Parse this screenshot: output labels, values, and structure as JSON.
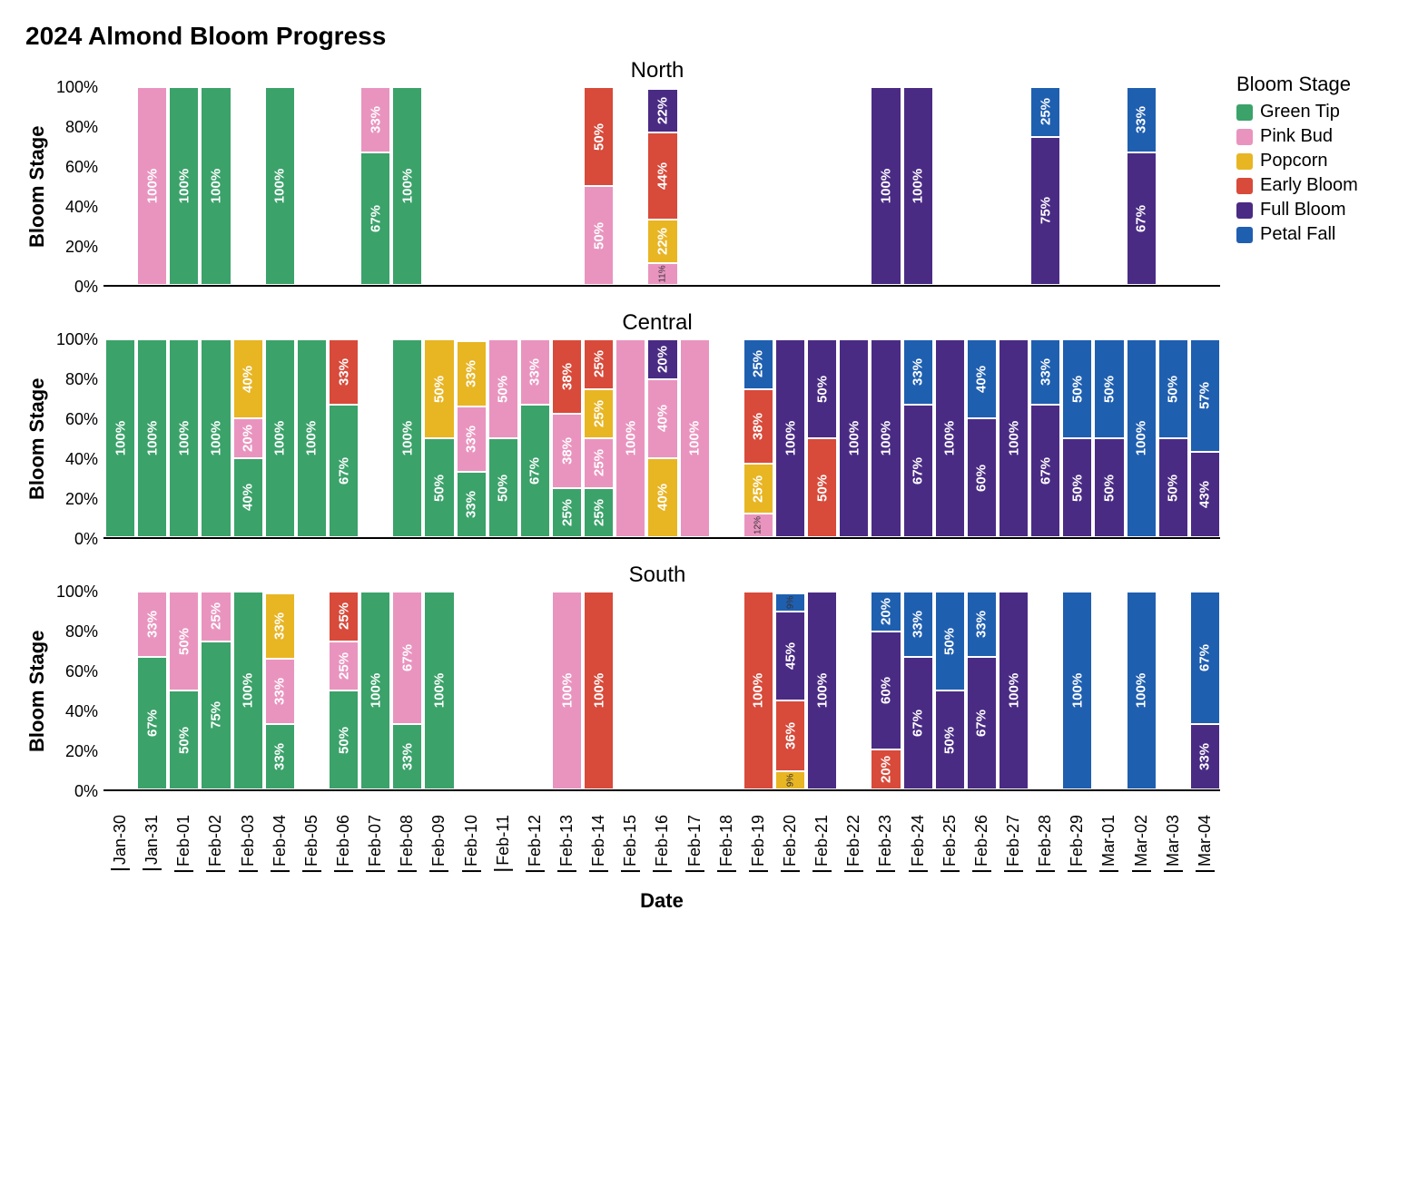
{
  "title": "2024 Almond Bloom Progress",
  "x_axis_label": "Date",
  "y_axis_label": "Bloom Stage",
  "y_ticks": [
    "0%",
    "20%",
    "40%",
    "60%",
    "80%",
    "100%"
  ],
  "dates": [
    "Jan-30",
    "Jan-31",
    "Feb-01",
    "Feb-02",
    "Feb-03",
    "Feb-04",
    "Feb-05",
    "Feb-06",
    "Feb-07",
    "Feb-08",
    "Feb-09",
    "Feb-10",
    "Feb-11",
    "Feb-12",
    "Feb-13",
    "Feb-14",
    "Feb-15",
    "Feb-16",
    "Feb-17",
    "Feb-18",
    "Feb-19",
    "Feb-20",
    "Feb-21",
    "Feb-22",
    "Feb-23",
    "Feb-24",
    "Feb-25",
    "Feb-26",
    "Feb-27",
    "Feb-28",
    "Feb-29",
    "Mar-01",
    "Mar-02",
    "Mar-03",
    "Mar-04"
  ],
  "legend_title": "Bloom Stage",
  "stages": [
    {
      "key": "green_tip",
      "label": "Green Tip",
      "color": "#3ba26a"
    },
    {
      "key": "pink_bud",
      "label": "Pink Bud",
      "color": "#e994bf"
    },
    {
      "key": "popcorn",
      "label": "Popcorn",
      "color": "#e8b523"
    },
    {
      "key": "early_bloom",
      "label": "Early Bloom",
      "color": "#d84a3a"
    },
    {
      "key": "full_bloom",
      "label": "Full Bloom",
      "color": "#4a2b84"
    },
    {
      "key": "petal_fall",
      "label": "Petal Fall",
      "color": "#1f5fb0"
    }
  ],
  "label_fontsize_pct": 15,
  "label_fontsize_small_pct": 10,
  "small_threshold": 15,
  "panels": [
    {
      "title": "North",
      "bars": {
        "Jan-31": [
          {
            "stage": "pink_bud",
            "pct": 100
          }
        ],
        "Feb-01": [
          {
            "stage": "green_tip",
            "pct": 100
          }
        ],
        "Feb-02": [
          {
            "stage": "green_tip",
            "pct": 100
          }
        ],
        "Feb-04": [
          {
            "stage": "green_tip",
            "pct": 100
          }
        ],
        "Feb-07": [
          {
            "stage": "green_tip",
            "pct": 67
          },
          {
            "stage": "pink_bud",
            "pct": 33
          }
        ],
        "Feb-08": [
          {
            "stage": "green_tip",
            "pct": 100
          }
        ],
        "Feb-14": [
          {
            "stage": "pink_bud",
            "pct": 50
          },
          {
            "stage": "early_bloom",
            "pct": 50
          }
        ],
        "Feb-16": [
          {
            "stage": "pink_bud",
            "pct": 11
          },
          {
            "stage": "popcorn",
            "pct": 22
          },
          {
            "stage": "early_bloom",
            "pct": 44
          },
          {
            "stage": "full_bloom",
            "pct": 22
          }
        ],
        "Feb-23": [
          {
            "stage": "full_bloom",
            "pct": 100
          }
        ],
        "Feb-24": [
          {
            "stage": "full_bloom",
            "pct": 100
          }
        ],
        "Feb-28": [
          {
            "stage": "full_bloom",
            "pct": 75
          },
          {
            "stage": "petal_fall",
            "pct": 25
          }
        ],
        "Mar-02": [
          {
            "stage": "full_bloom",
            "pct": 67
          },
          {
            "stage": "petal_fall",
            "pct": 33
          }
        ]
      }
    },
    {
      "title": "Central",
      "bars": {
        "Jan-30": [
          {
            "stage": "green_tip",
            "pct": 100
          }
        ],
        "Jan-31": [
          {
            "stage": "green_tip",
            "pct": 100
          }
        ],
        "Feb-01": [
          {
            "stage": "green_tip",
            "pct": 100
          }
        ],
        "Feb-02": [
          {
            "stage": "green_tip",
            "pct": 100
          }
        ],
        "Feb-03": [
          {
            "stage": "green_tip",
            "pct": 40
          },
          {
            "stage": "pink_bud",
            "pct": 20
          },
          {
            "stage": "popcorn",
            "pct": 40
          }
        ],
        "Feb-04": [
          {
            "stage": "green_tip",
            "pct": 100
          }
        ],
        "Feb-05": [
          {
            "stage": "green_tip",
            "pct": 100
          }
        ],
        "Feb-06": [
          {
            "stage": "green_tip",
            "pct": 67
          },
          {
            "stage": "early_bloom",
            "pct": 33
          }
        ],
        "Feb-08": [
          {
            "stage": "green_tip",
            "pct": 100
          }
        ],
        "Feb-09": [
          {
            "stage": "green_tip",
            "pct": 50
          },
          {
            "stage": "popcorn",
            "pct": 50
          }
        ],
        "Feb-10": [
          {
            "stage": "green_tip",
            "pct": 33
          },
          {
            "stage": "pink_bud",
            "pct": 33
          },
          {
            "stage": "popcorn",
            "pct": 33
          }
        ],
        "Feb-11": [
          {
            "stage": "green_tip",
            "pct": 50
          },
          {
            "stage": "pink_bud",
            "pct": 50
          }
        ],
        "Feb-12": [
          {
            "stage": "green_tip",
            "pct": 67
          },
          {
            "stage": "pink_bud",
            "pct": 33
          }
        ],
        "Feb-13": [
          {
            "stage": "green_tip",
            "pct": 25
          },
          {
            "stage": "pink_bud",
            "pct": 38
          },
          {
            "stage": "early_bloom",
            "pct": 38
          }
        ],
        "Feb-14": [
          {
            "stage": "green_tip",
            "pct": 25
          },
          {
            "stage": "pink_bud",
            "pct": 25
          },
          {
            "stage": "popcorn",
            "pct": 25
          },
          {
            "stage": "early_bloom",
            "pct": 25
          }
        ],
        "Feb-15": [
          {
            "stage": "pink_bud",
            "pct": 100
          }
        ],
        "Feb-16": [
          {
            "stage": "popcorn",
            "pct": 40
          },
          {
            "stage": "pink_bud",
            "pct": 40
          },
          {
            "stage": "full_bloom",
            "pct": 20
          }
        ],
        "Feb-17": [
          {
            "stage": "pink_bud",
            "pct": 100
          }
        ],
        "Feb-19": [
          {
            "stage": "pink_bud",
            "pct": 12
          },
          {
            "stage": "popcorn",
            "pct": 25
          },
          {
            "stage": "early_bloom",
            "pct": 38
          },
          {
            "stage": "petal_fall",
            "pct": 25
          }
        ],
        "Feb-20": [
          {
            "stage": "full_bloom",
            "pct": 100
          }
        ],
        "Feb-21": [
          {
            "stage": "early_bloom",
            "pct": 50
          },
          {
            "stage": "full_bloom",
            "pct": 50
          }
        ],
        "Feb-22": [
          {
            "stage": "full_bloom",
            "pct": 100
          }
        ],
        "Feb-23": [
          {
            "stage": "full_bloom",
            "pct": 100
          }
        ],
        "Feb-24": [
          {
            "stage": "full_bloom",
            "pct": 67
          },
          {
            "stage": "petal_fall",
            "pct": 33
          }
        ],
        "Feb-25": [
          {
            "stage": "full_bloom",
            "pct": 100
          }
        ],
        "Feb-26": [
          {
            "stage": "full_bloom",
            "pct": 60
          },
          {
            "stage": "petal_fall",
            "pct": 40
          }
        ],
        "Feb-27": [
          {
            "stage": "full_bloom",
            "pct": 100
          }
        ],
        "Feb-28": [
          {
            "stage": "full_bloom",
            "pct": 67
          },
          {
            "stage": "petal_fall",
            "pct": 33
          }
        ],
        "Feb-29": [
          {
            "stage": "full_bloom",
            "pct": 50
          },
          {
            "stage": "petal_fall",
            "pct": 50
          }
        ],
        "Mar-01": [
          {
            "stage": "full_bloom",
            "pct": 50
          },
          {
            "stage": "petal_fall",
            "pct": 50
          }
        ],
        "Mar-02": [
          {
            "stage": "petal_fall",
            "pct": 100
          }
        ],
        "Mar-03": [
          {
            "stage": "full_bloom",
            "pct": 50
          },
          {
            "stage": "petal_fall",
            "pct": 50
          }
        ],
        "Mar-04": [
          {
            "stage": "full_bloom",
            "pct": 43
          },
          {
            "stage": "petal_fall",
            "pct": 57
          }
        ]
      }
    },
    {
      "title": "South",
      "bars": {
        "Jan-31": [
          {
            "stage": "green_tip",
            "pct": 67
          },
          {
            "stage": "pink_bud",
            "pct": 33
          }
        ],
        "Feb-01": [
          {
            "stage": "green_tip",
            "pct": 50
          },
          {
            "stage": "pink_bud",
            "pct": 50
          }
        ],
        "Feb-02": [
          {
            "stage": "green_tip",
            "pct": 75
          },
          {
            "stage": "pink_bud",
            "pct": 25
          }
        ],
        "Feb-03": [
          {
            "stage": "green_tip",
            "pct": 100
          }
        ],
        "Feb-04": [
          {
            "stage": "green_tip",
            "pct": 33
          },
          {
            "stage": "pink_bud",
            "pct": 33
          },
          {
            "stage": "popcorn",
            "pct": 33
          }
        ],
        "Feb-06": [
          {
            "stage": "green_tip",
            "pct": 50
          },
          {
            "stage": "pink_bud",
            "pct": 25
          },
          {
            "stage": "early_bloom",
            "pct": 25
          }
        ],
        "Feb-07": [
          {
            "stage": "green_tip",
            "pct": 100
          }
        ],
        "Feb-08": [
          {
            "stage": "green_tip",
            "pct": 33
          },
          {
            "stage": "pink_bud",
            "pct": 67
          }
        ],
        "Feb-09": [
          {
            "stage": "green_tip",
            "pct": 100
          }
        ],
        "Feb-13": [
          {
            "stage": "pink_bud",
            "pct": 100
          }
        ],
        "Feb-14": [
          {
            "stage": "early_bloom",
            "pct": 100
          }
        ],
        "Feb-19": [
          {
            "stage": "early_bloom",
            "pct": 100
          }
        ],
        "Feb-20": [
          {
            "stage": "popcorn",
            "pct": 9
          },
          {
            "stage": "early_bloom",
            "pct": 36
          },
          {
            "stage": "full_bloom",
            "pct": 45
          },
          {
            "stage": "petal_fall",
            "pct": 9
          }
        ],
        "Feb-21": [
          {
            "stage": "full_bloom",
            "pct": 100
          }
        ],
        "Feb-23": [
          {
            "stage": "early_bloom",
            "pct": 20
          },
          {
            "stage": "full_bloom",
            "pct": 60
          },
          {
            "stage": "petal_fall",
            "pct": 20
          }
        ],
        "Feb-24": [
          {
            "stage": "full_bloom",
            "pct": 67
          },
          {
            "stage": "petal_fall",
            "pct": 33
          }
        ],
        "Feb-25": [
          {
            "stage": "full_bloom",
            "pct": 50
          },
          {
            "stage": "petal_fall",
            "pct": 50
          }
        ],
        "Feb-26": [
          {
            "stage": "full_bloom",
            "pct": 67
          },
          {
            "stage": "petal_fall",
            "pct": 33
          }
        ],
        "Feb-27": [
          {
            "stage": "full_bloom",
            "pct": 100
          }
        ],
        "Feb-29": [
          {
            "stage": "petal_fall",
            "pct": 100
          }
        ],
        "Mar-02": [
          {
            "stage": "petal_fall",
            "pct": 100
          }
        ],
        "Mar-04": [
          {
            "stage": "full_bloom",
            "pct": 33
          },
          {
            "stage": "petal_fall",
            "pct": 67
          }
        ]
      }
    }
  ]
}
